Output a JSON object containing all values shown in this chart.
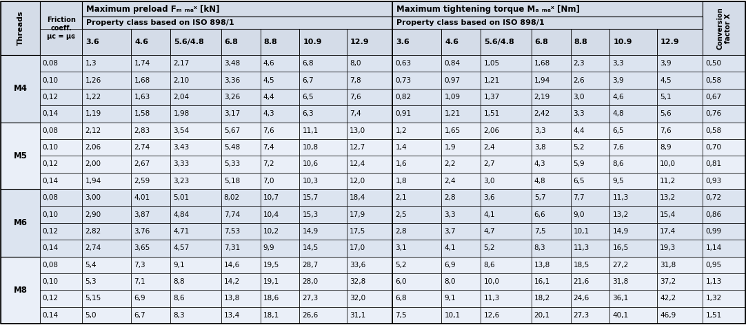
{
  "header_bg": "#d4dce8",
  "row_bg_even": "#dce4f0",
  "row_bg_odd": "#eaeff8",
  "threads": [
    "M4",
    "M5",
    "M6",
    "M8"
  ],
  "property_classes": [
    "3.6",
    "4.6",
    "5.6/4.8",
    "6.8",
    "8.8",
    "10.9",
    "12.9"
  ],
  "friction_labels": [
    "0,08",
    "0,10",
    "0,12",
    "0,14"
  ],
  "friction_keys": [
    "0.08",
    "0.10",
    "0.12",
    "0.14"
  ],
  "preload_data": {
    "M4": {
      "0.08": [
        "1,3",
        "1,74",
        "2,17",
        "3,48",
        "4,6",
        "6,8",
        "8,0"
      ],
      "0.10": [
        "1,26",
        "1,68",
        "2,10",
        "3,36",
        "4,5",
        "6,7",
        "7,8"
      ],
      "0.12": [
        "1,22",
        "1,63",
        "2,04",
        "3,26",
        "4,4",
        "6,5",
        "7,6"
      ],
      "0.14": [
        "1,19",
        "1,58",
        "1,98",
        "3,17",
        "4,3",
        "6,3",
        "7,4"
      ]
    },
    "M5": {
      "0.08": [
        "2,12",
        "2,83",
        "3,54",
        "5,67",
        "7,6",
        "11,1",
        "13,0"
      ],
      "0.10": [
        "2,06",
        "2,74",
        "3,43",
        "5,48",
        "7,4",
        "10,8",
        "12,7"
      ],
      "0.12": [
        "2,00",
        "2,67",
        "3,33",
        "5,33",
        "7,2",
        "10,6",
        "12,4"
      ],
      "0.14": [
        "1,94",
        "2,59",
        "3,23",
        "5,18",
        "7,0",
        "10,3",
        "12,0"
      ]
    },
    "M6": {
      "0.08": [
        "3,00",
        "4,01",
        "5,01",
        "8,02",
        "10,7",
        "15,7",
        "18,4"
      ],
      "0.10": [
        "2,90",
        "3,87",
        "4,84",
        "7,74",
        "10,4",
        "15,3",
        "17,9"
      ],
      "0.12": [
        "2,82",
        "3,76",
        "4,71",
        "7,53",
        "10,2",
        "14,9",
        "17,5"
      ],
      "0.14": [
        "2,74",
        "3,65",
        "4,57",
        "7,31",
        "9,9",
        "14,5",
        "17,0"
      ]
    },
    "M8": {
      "0.08": [
        "5,4",
        "7,3",
        "9,1",
        "14,6",
        "19,5",
        "28,7",
        "33,6"
      ],
      "0.10": [
        "5,3",
        "7,1",
        "8,8",
        "14,2",
        "19,1",
        "28,0",
        "32,8"
      ],
      "0.12": [
        "5,15",
        "6,9",
        "8,6",
        "13,8",
        "18,6",
        "27,3",
        "32,0"
      ],
      "0.14": [
        "5,0",
        "6,7",
        "8,3",
        "13,4",
        "18,1",
        "26,6",
        "31,1"
      ]
    }
  },
  "torque_data": {
    "M4": {
      "0.08": [
        "0,63",
        "0,84",
        "1,05",
        "1,68",
        "2,3",
        "3,3",
        "3,9"
      ],
      "0.10": [
        "0,73",
        "0,97",
        "1,21",
        "1,94",
        "2,6",
        "3,9",
        "4,5"
      ],
      "0.12": [
        "0,82",
        "1,09",
        "1,37",
        "2,19",
        "3,0",
        "4,6",
        "5,1"
      ],
      "0.14": [
        "0,91",
        "1,21",
        "1,51",
        "2,42",
        "3,3",
        "4,8",
        "5,6"
      ]
    },
    "M5": {
      "0.08": [
        "1,2",
        "1,65",
        "2,06",
        "3,3",
        "4,4",
        "6,5",
        "7,6"
      ],
      "0.10": [
        "1,4",
        "1,9",
        "2,4",
        "3,8",
        "5,2",
        "7,6",
        "8,9"
      ],
      "0.12": [
        "1,6",
        "2,2",
        "2,7",
        "4,3",
        "5,9",
        "8,6",
        "10,0"
      ],
      "0.14": [
        "1,8",
        "2,4",
        "3,0",
        "4,8",
        "6,5",
        "9,5",
        "11,2"
      ]
    },
    "M6": {
      "0.08": [
        "2,1",
        "2,8",
        "3,6",
        "5,7",
        "7,7",
        "11,3",
        "13,2"
      ],
      "0.10": [
        "2,5",
        "3,3",
        "4,1",
        "6,6",
        "9,0",
        "13,2",
        "15,4"
      ],
      "0.12": [
        "2,8",
        "3,7",
        "4,7",
        "7,5",
        "10,1",
        "14,9",
        "17,4"
      ],
      "0.14": [
        "3,1",
        "4,1",
        "5,2",
        "8,3",
        "11,3",
        "16,5",
        "19,3"
      ]
    },
    "M8": {
      "0.08": [
        "5,2",
        "6,9",
        "8,6",
        "13,8",
        "18,5",
        "27,2",
        "31,8"
      ],
      "0.10": [
        "6,0",
        "8,0",
        "10,0",
        "16,1",
        "21,6",
        "31,8",
        "37,2"
      ],
      "0.12": [
        "6,8",
        "9,1",
        "11,3",
        "18,2",
        "24,6",
        "36,1",
        "42,2"
      ],
      "0.14": [
        "7,5",
        "10,1",
        "12,6",
        "20,1",
        "27,3",
        "40,1",
        "46,9"
      ]
    }
  },
  "conversion_data": {
    "M4": [
      "0,50",
      "0,58",
      "0,67",
      "0,76"
    ],
    "M5": [
      "0,58",
      "0,70",
      "0,81",
      "0,93"
    ],
    "M6": [
      "0,72",
      "0,86",
      "0,99",
      "1,14"
    ],
    "M8": [
      "0,95",
      "1,13",
      "1,32",
      "1,51"
    ]
  }
}
